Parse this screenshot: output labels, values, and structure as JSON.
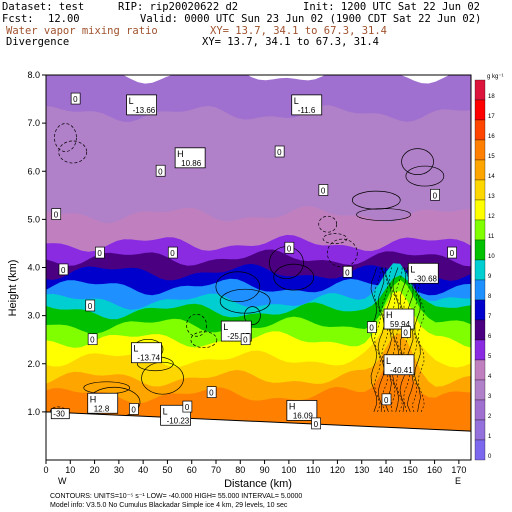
{
  "header": {
    "dataset": "Dataset: test",
    "rip": "RIP: rip20020622 d2",
    "init": "Init: 1200 UTC Sat 22 Jun 02",
    "fcst_label": "Fcst:",
    "fcst_value": "12.00",
    "valid": "Valid: 0000 UTC Sun 23 Jun 02 (1900 CDT Sat 22 Jun 02)",
    "field1_name": "Water vapor mixing ratio",
    "field1_xy": "XY=  13.7, 34.1 to  67.3, 31.4",
    "field2_name": "Divergence",
    "field2_xy": "XY=  13.7, 34.1 to  67.3, 31.4"
  },
  "footer": {
    "contours": "CONTOURS:  UNITS=10⁻⁵ s⁻¹  LOW=  -40.000        HIGH=   55.000       INTERVAL=    5.0000",
    "model_info": "Model info: V3.5.0 No Cumulus Blackadar  Simple ice     4 km,   29 levels,  10 sec",
    "west": "W",
    "east": "E"
  },
  "colors": {
    "scale": [
      "#7b68ee",
      "#9370db",
      "#a070d0",
      "#b080c8",
      "#c080c0",
      "#8a2be2",
      "#4b0082",
      "#0000cd",
      "#1e90ff",
      "#00ced1",
      "#00c000",
      "#7fff00",
      "#ffff00",
      "#ffd700",
      "#ffa500",
      "#ff7f00",
      "#ff4500",
      "#ff0000",
      "#dc143c"
    ]
  },
  "chart_data": {
    "type": "heatmap",
    "xlabel": "Distance (km)",
    "ylabel": "Height (km)",
    "xlim": [
      0,
      175
    ],
    "ylim": [
      0,
      8
    ],
    "x_ticks": [
      0,
      10,
      20,
      30,
      40,
      50,
      60,
      70,
      80,
      90,
      100,
      110,
      120,
      130,
      140,
      150,
      160,
      170
    ],
    "y_ticks": [
      1.0,
      2.0,
      3.0,
      4.0,
      5.0,
      6.0,
      7.0,
      8.0
    ],
    "colorbar": {
      "unit": "g kg⁻¹",
      "levels": [
        0,
        1,
        2,
        3,
        4,
        5,
        6,
        7,
        8,
        9,
        10,
        11,
        12,
        13,
        14,
        15,
        16,
        17,
        18
      ]
    },
    "humidity_layers": [
      {
        "level": 2,
        "top_km": 8.0
      },
      {
        "level": 3,
        "top_km": 7.2
      },
      {
        "level": 4,
        "top_km": 5.1
      },
      {
        "level": 5,
        "top_km": 4.5
      },
      {
        "level": 6,
        "top_km": 4.2
      },
      {
        "level": 7,
        "top_km": 3.9
      },
      {
        "level": 8,
        "top_km": 3.6
      },
      {
        "level": 9,
        "top_km": 3.3
      },
      {
        "level": 10,
        "top_km": 3.1
      },
      {
        "level": 11,
        "top_km": 2.8
      },
      {
        "level": 12,
        "top_km": 2.5
      },
      {
        "level": 13,
        "top_km": 2.1
      },
      {
        "level": 14,
        "top_km": 1.7
      },
      {
        "level": 15,
        "top_km": 1.35
      }
    ],
    "annotations": [
      {
        "type": "L",
        "value": "-13.66",
        "x": 34,
        "y": 7.4
      },
      {
        "type": "L",
        "value": "-11.6",
        "x": 102,
        "y": 7.4
      },
      {
        "type": "H",
        "value": "10.86",
        "x": 54,
        "y": 6.3
      },
      {
        "type": "L",
        "value": "-30.68",
        "x": 150,
        "y": 3.9
      },
      {
        "type": "H",
        "value": "59.94",
        "x": 140,
        "y": 2.95
      },
      {
        "type": "L",
        "value": "-25.15",
        "x": 73,
        "y": 2.7
      },
      {
        "type": "L",
        "value": "-13.74",
        "x": 36,
        "y": 2.25
      },
      {
        "type": "L",
        "value": "-40.41",
        "x": 140,
        "y": 2.0
      },
      {
        "type": "H",
        "value": "12.8",
        "x": 18,
        "y": 1.2
      },
      {
        "type": "L",
        "value": "-10.23",
        "x": 48,
        "y": 0.95
      },
      {
        "type": "H",
        "value": "16.09",
        "x": 100,
        "y": 1.05
      },
      {
        "type": "label",
        "value": "-30",
        "x": 3,
        "y": 0.9
      }
    ],
    "zero_labels": [
      {
        "x": 12,
        "y": 7.5
      },
      {
        "x": 47,
        "y": 6.0
      },
      {
        "x": 96,
        "y": 6.4
      },
      {
        "x": 114,
        "y": 5.6
      },
      {
        "x": 4,
        "y": 5.1
      },
      {
        "x": 22,
        "y": 4.3
      },
      {
        "x": 52,
        "y": 4.3
      },
      {
        "x": 100,
        "y": 4.4
      },
      {
        "x": 7,
        "y": 3.95
      },
      {
        "x": 124,
        "y": 3.9
      },
      {
        "x": 18,
        "y": 3.2
      },
      {
        "x": 167,
        "y": 4.3
      },
      {
        "x": 160,
        "y": 5.5
      },
      {
        "x": 19,
        "y": 2.5
      },
      {
        "x": 82,
        "y": 2.5
      },
      {
        "x": 148,
        "y": 2.65
      },
      {
        "x": 134,
        "y": 2.75
      },
      {
        "x": 68,
        "y": 1.4
      },
      {
        "x": 36,
        "y": 1.05
      },
      {
        "x": 58,
        "y": 1.1
      },
      {
        "x": 140,
        "y": 1.25
      },
      {
        "x": 111,
        "y": 0.75
      }
    ],
    "terrain_km": [
      [
        0,
        1.0
      ],
      [
        175,
        0.6
      ]
    ]
  }
}
